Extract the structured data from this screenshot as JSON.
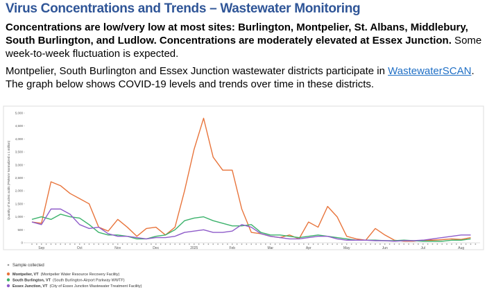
{
  "header": {
    "title": "Virus Concentrations and Trends – Wastewater Monitoring"
  },
  "summary": {
    "bold": "Concentrations are low/very low at most sites: Burlington, Montpelier, St. Albans, Middlebury, South Burlington, and Ludlow. Concentrations are moderately elevated at Essex Junction.",
    "normal": " Some week-to-week fluctuation is expected."
  },
  "intro": {
    "before": "Montpelier, South Burlington and Essex Junction wastewater districts participate in ",
    "link": "WastewaterSCAN",
    "after": ". The graph below shows COVID-19 levels and trends over time in these districts."
  },
  "chart_data": {
    "type": "line",
    "y_label": "Quantity of nucleic acids (PMMoV Normalized x 1 million)",
    "categories": [
      null,
      "Sep",
      null,
      null,
      null,
      "Oct",
      null,
      null,
      null,
      "Nov",
      null,
      null,
      null,
      "Dec",
      null,
      null,
      null,
      "2025",
      null,
      null,
      null,
      "Feb",
      null,
      null,
      null,
      "Mar",
      null,
      null,
      null,
      "Apr",
      null,
      null,
      null,
      "May",
      null,
      null,
      null,
      "Jun",
      null,
      null,
      null,
      "Jul",
      null,
      null,
      null,
      "Aug",
      null
    ],
    "ylim": [
      0,
      5000
    ],
    "yticks": [
      0,
      500,
      {
        "value": 1000,
        "label": "1,000"
      },
      {
        "value": 1500,
        "label": "1,500"
      },
      {
        "value": 2000,
        "label": "2,000"
      },
      {
        "value": 2500,
        "label": "2,500"
      },
      {
        "value": 3000,
        "label": "3,000"
      },
      {
        "value": 3500,
        "label": "3,500"
      },
      {
        "value": 4000,
        "label": "4,000"
      },
      {
        "value": 4500,
        "label": "4,500"
      },
      {
        "value": 5000,
        "label": "5,000"
      }
    ],
    "grid": false,
    "sample_legend": {
      "name": "Sample collected",
      "color": "#999999"
    },
    "series": [
      {
        "name": "Montpelier, VT",
        "detail": "(Montpelier Water Resource Recovery Facility)",
        "color": "#e8743b",
        "values": [
          800,
          750,
          2350,
          2200,
          1900,
          1700,
          1500,
          600,
          450,
          900,
          600,
          250,
          550,
          600,
          300,
          600,
          2000,
          3600,
          4800,
          3300,
          2800,
          2800,
          1300,
          400,
          350,
          250,
          200,
          300,
          150,
          800,
          600,
          1400,
          1000,
          250,
          150,
          100,
          550,
          300,
          100,
          60,
          60,
          100,
          100,
          120,
          150,
          130,
          200
        ]
      },
      {
        "name": "South Burlington, VT",
        "detail": "(South Burlington-Airport Parkway WWTF)",
        "color": "#3bb26b",
        "values": [
          900,
          1000,
          900,
          1100,
          1000,
          950,
          700,
          400,
          300,
          300,
          250,
          150,
          150,
          250,
          300,
          500,
          850,
          950,
          1000,
          850,
          750,
          650,
          650,
          700,
          400,
          300,
          300,
          250,
          200,
          250,
          300,
          250,
          200,
          150,
          100,
          100,
          100,
          80,
          80,
          100,
          80,
          60,
          60,
          60,
          100,
          100,
          150
        ]
      },
      {
        "name": "Essex Junction, VT",
        "detail": "(City of Essex Junction Wastewater Treatment Facility)",
        "color": "#8e5bc9",
        "values": [
          800,
          700,
          1300,
          1300,
          1100,
          700,
          550,
          600,
          350,
          250,
          250,
          200,
          150,
          200,
          200,
          250,
          400,
          450,
          500,
          400,
          400,
          450,
          700,
          600,
          350,
          250,
          200,
          150,
          150,
          200,
          250,
          250,
          150,
          100,
          100,
          100,
          80,
          80,
          60,
          80,
          80,
          100,
          150,
          200,
          250,
          300,
          300
        ]
      }
    ]
  }
}
